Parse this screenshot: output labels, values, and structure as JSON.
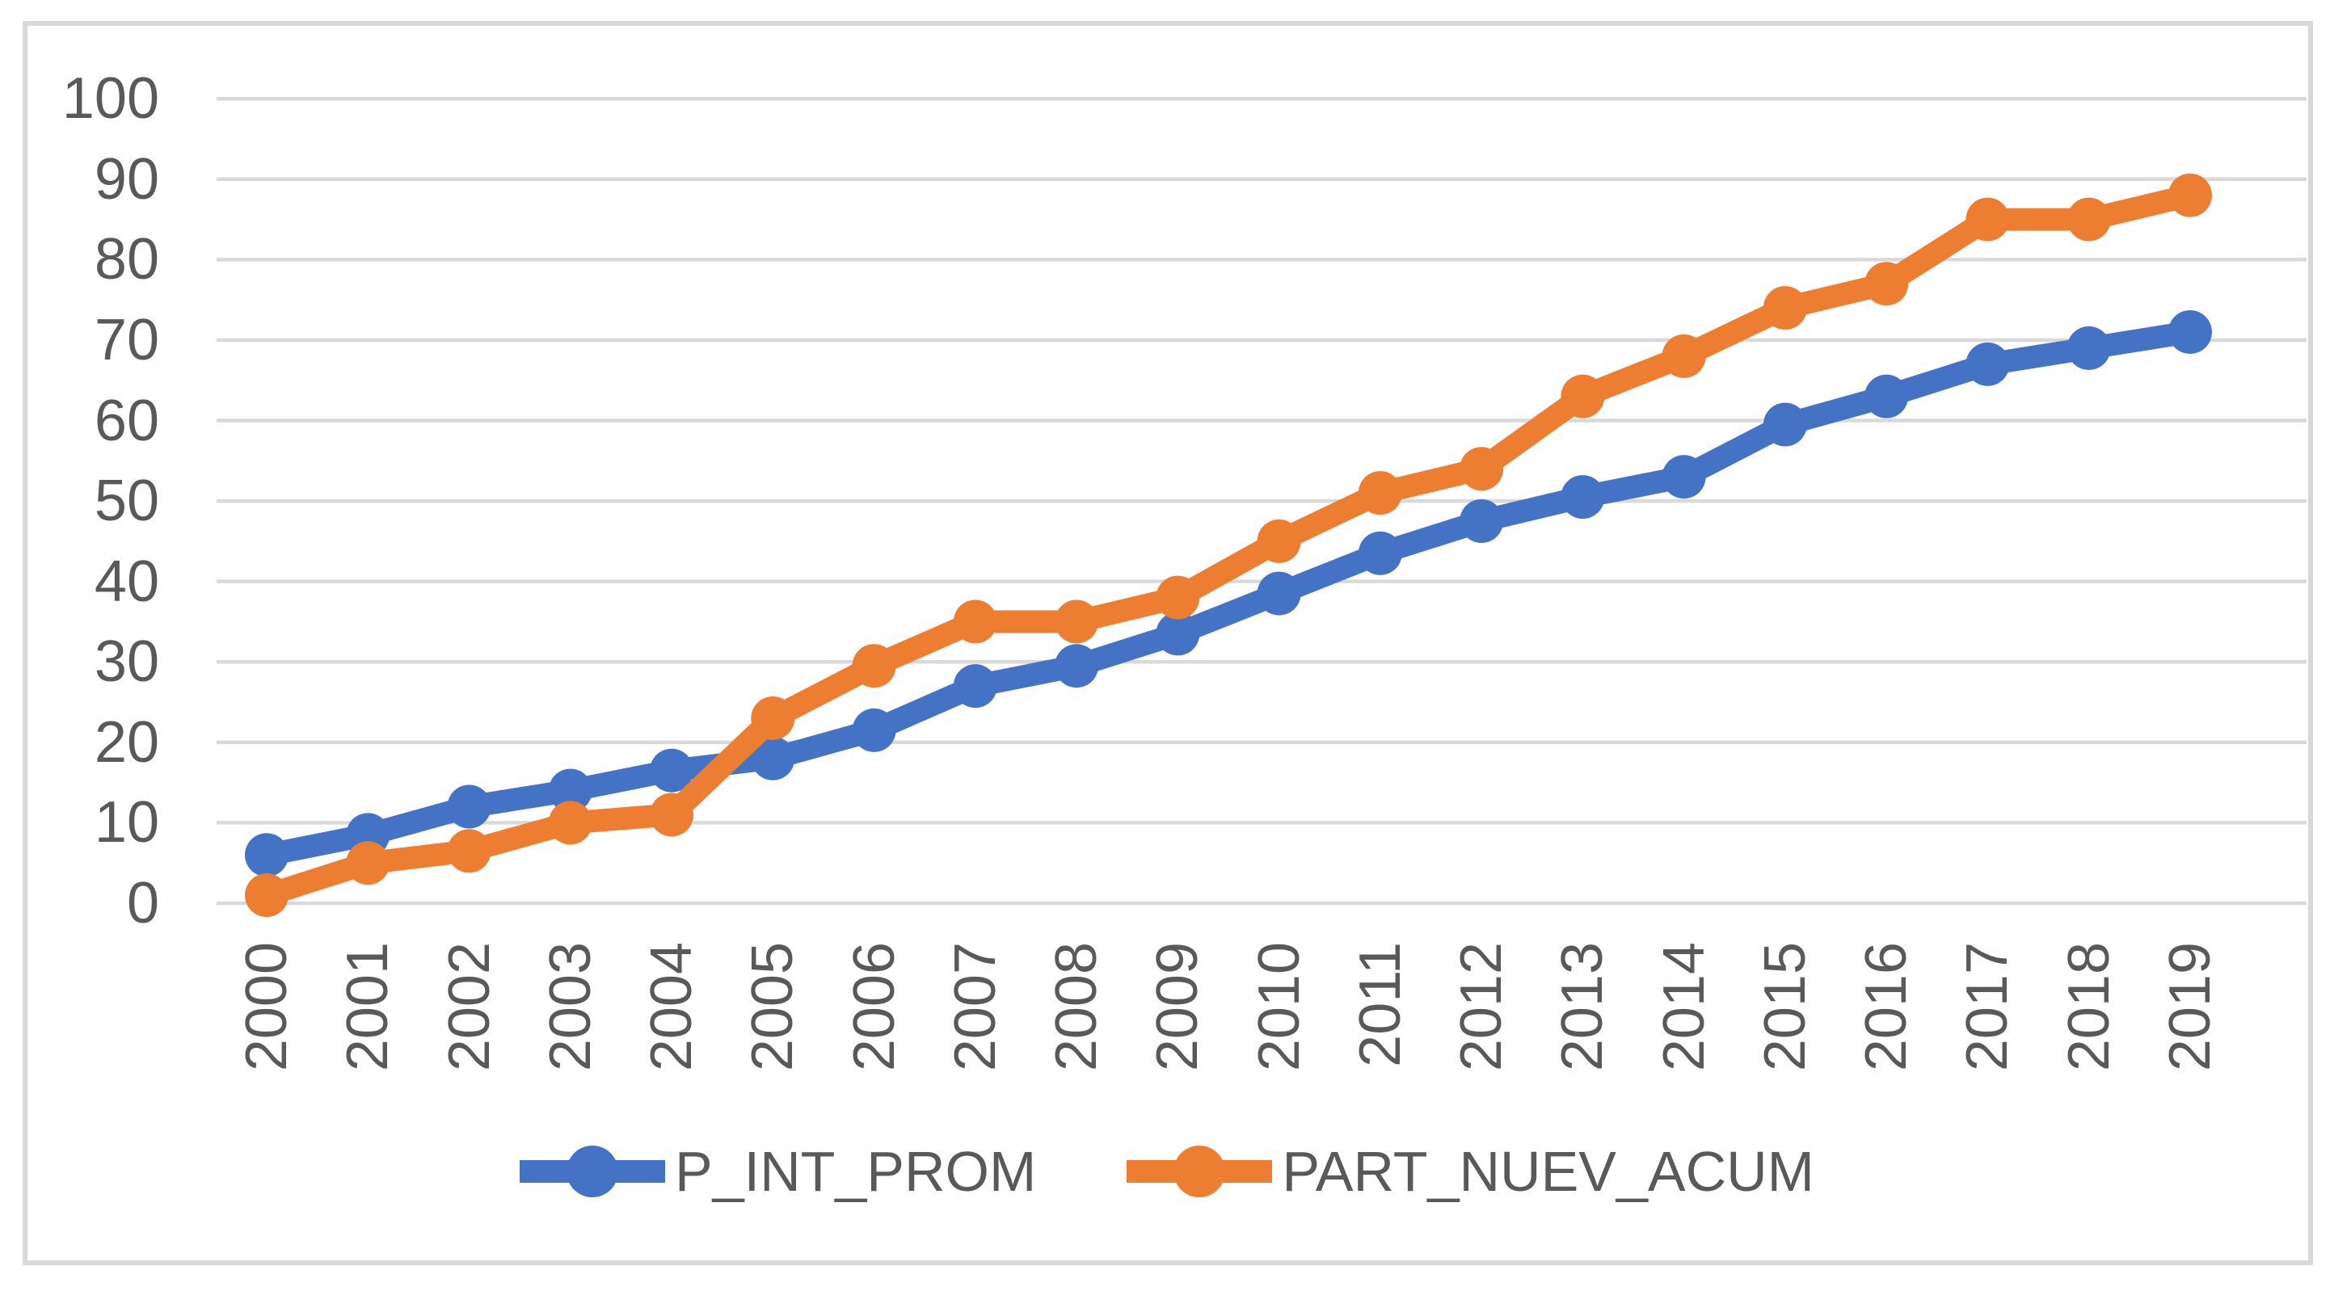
{
  "chart_data": {
    "type": "line",
    "title": "",
    "xlabel": "",
    "ylabel": "",
    "categories": [
      "2000",
      "2001",
      "2002",
      "2003",
      "2004",
      "2005",
      "2006",
      "2007",
      "2008",
      "2009",
      "2010",
      "2011",
      "2012",
      "2013",
      "2014",
      "2015",
      "2016",
      "2017",
      "2018",
      "2019"
    ],
    "series": [
      {
        "name": "P_INT_PROM",
        "color": "#4472C4",
        "values": [
          6,
          8.5,
          12,
          14,
          16.5,
          18,
          21.5,
          27,
          29.5,
          33.5,
          38.5,
          43.5,
          47.5,
          50.5,
          53,
          59.5,
          63,
          67,
          69,
          71
        ]
      },
      {
        "name": "PART_NUEV_ACUM",
        "color": "#ED7D31",
        "values": [
          1,
          5,
          6.5,
          10,
          11,
          23,
          29.5,
          35,
          35,
          38,
          45,
          51,
          54,
          63,
          68,
          74,
          77,
          85,
          85,
          88
        ]
      }
    ],
    "ylim": [
      0,
      100
    ],
    "y_ticks": [
      0,
      10,
      20,
      30,
      40,
      50,
      60,
      70,
      80,
      90,
      100
    ],
    "grid": "horizontal",
    "legend_position": "bottom",
    "gridline_color": "#D9D9D9",
    "frame_color": "#D9D9D9",
    "axis_label_color": "#595959",
    "background_color": "#FFFFFF"
  }
}
